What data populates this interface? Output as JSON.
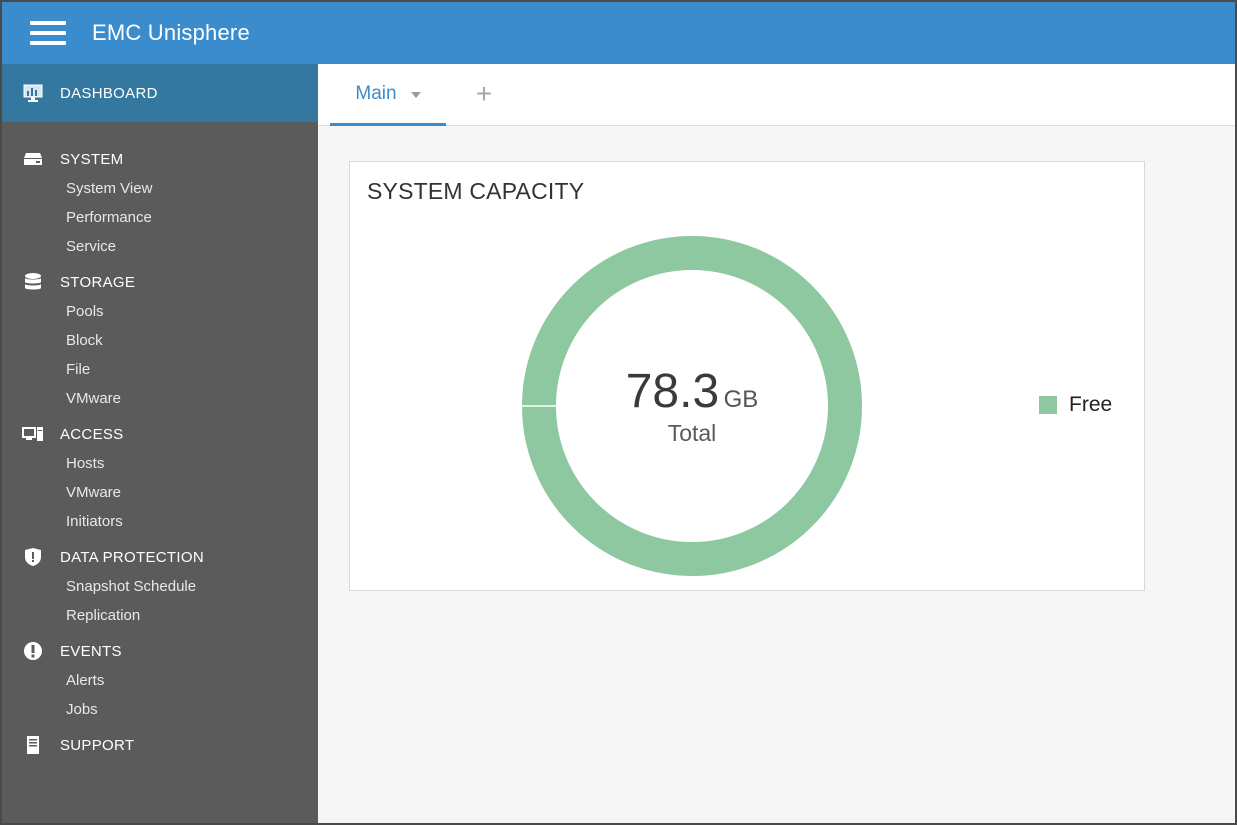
{
  "app": {
    "title": "EMC Unisphere"
  },
  "sidebar": {
    "dashboard": {
      "label": "DASHBOARD",
      "icon": "dashboard-monitor-icon"
    },
    "sections": [
      {
        "label": "SYSTEM",
        "icon": "server-icon",
        "items": [
          "System View",
          "Performance",
          "Service"
        ]
      },
      {
        "label": "STORAGE",
        "icon": "database-icon",
        "items": [
          "Pools",
          "Block",
          "File",
          "VMware"
        ]
      },
      {
        "label": "ACCESS",
        "icon": "hosts-icon",
        "items": [
          "Hosts",
          "VMware",
          "Initiators"
        ]
      },
      {
        "label": "DATA PROTECTION",
        "icon": "shield-icon",
        "items": [
          "Snapshot Schedule",
          "Replication"
        ]
      },
      {
        "label": "EVENTS",
        "icon": "alert-icon",
        "items": [
          "Alerts",
          "Jobs"
        ]
      },
      {
        "label": "SUPPORT",
        "icon": "document-icon",
        "items": []
      }
    ]
  },
  "tabs": {
    "main_label": "Main",
    "add_label": "+"
  },
  "widget": {
    "title": "SYSTEM CAPACITY",
    "total_value": "78.3",
    "total_unit": "GB",
    "total_label": "Total",
    "legend": [
      {
        "label": "Free",
        "color": "#8dc8a0"
      }
    ]
  },
  "chart_data": {
    "type": "pie",
    "categories": [
      "Free"
    ],
    "values": [
      78.3
    ],
    "colors": [
      "#8dc8a0"
    ],
    "legend_position": "right"
  },
  "colors": {
    "header": "#3a8ccc",
    "sidebar": "#5b5b5b",
    "sidebar_active": "#34789f",
    "accent": "#3a8ccc",
    "free": "#8dc8a0"
  }
}
